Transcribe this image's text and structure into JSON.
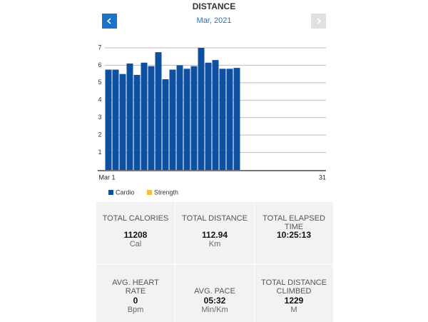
{
  "header": {
    "title": "DISTANCE",
    "period": "Mar, 2021"
  },
  "chart_data": {
    "type": "bar",
    "categories": [
      "Mar 1",
      null,
      null,
      null,
      null,
      null,
      null,
      null,
      null,
      null,
      null,
      null,
      null,
      null,
      null,
      null,
      null,
      null,
      null,
      null,
      null,
      null,
      null,
      null,
      null,
      null,
      null,
      null,
      null,
      null,
      "31"
    ],
    "series": [
      {
        "name": "Cardio",
        "color": "#0d4fa0",
        "values": [
          5.75,
          5.75,
          5.5,
          6.1,
          5.45,
          6.15,
          5.95,
          6.75,
          5.2,
          5.75,
          6.0,
          5.8,
          5.95,
          7.0,
          6.15,
          6.3,
          5.8,
          5.8,
          5.85,
          null,
          null,
          null,
          null,
          null,
          null,
          null,
          null,
          null,
          null,
          null,
          null
        ]
      },
      {
        "name": "Strength",
        "color": "#f0c040",
        "values": [
          null,
          null,
          null,
          null,
          null,
          null,
          null,
          null,
          null,
          null,
          null,
          null,
          null,
          null,
          null,
          null,
          null,
          null,
          null,
          null,
          null,
          null,
          null,
          null,
          null,
          null,
          null,
          null,
          null,
          null,
          null
        ]
      }
    ],
    "stacked": true,
    "ylim": [
      0,
      7
    ],
    "yticks": [
      1,
      2,
      3,
      4,
      5,
      6,
      7
    ],
    "grid": true,
    "legend": "bottom-left"
  },
  "stats": {
    "rows": [
      [
        {
          "label": "TOTAL CALORIES",
          "value": "11208",
          "unit": "Cal"
        },
        {
          "label": "TOTAL DISTANCE",
          "value": "112.94",
          "unit": "Km"
        },
        {
          "label": "TOTAL ELAPSED TIME",
          "value": "10:25:13"
        }
      ],
      [
        {
          "label": "AVG. HEART RATE",
          "value": "0",
          "unit": "Bpm"
        },
        {
          "label": "AVG. PACE",
          "value": "05:32",
          "unit": "Min/Km"
        },
        {
          "label": "TOTAL DISTANCE CLIMBED",
          "value": "1229",
          "unit": "M"
        }
      ]
    ]
  }
}
